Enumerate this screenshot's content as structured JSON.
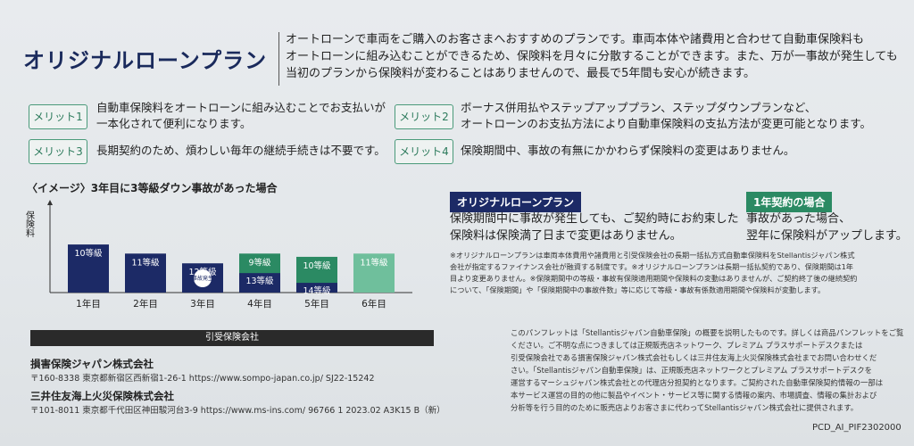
{
  "title": "オリジナルローンプラン",
  "intro": [
    "オートローンで車両をご購入のお客さまへおすすめのプランです。車両本体や諸費用と合わせて自動車保険料も",
    "オートローンに組み込むことができるため、保険料を月々に分散することができます。また、万が一事故が発生しても",
    "当初のプランから保険料が変わることはありませんので、最長で5年間も安心が続きます。"
  ],
  "merits": [
    {
      "label": "メリット1",
      "lines": [
        "自動車保険料をオートローンに組み込むことでお支払いが",
        "一本化されて便利になります。"
      ]
    },
    {
      "label": "メリット2",
      "lines": [
        "ボーナス併用払やステップアッププラン、ステップダウンプランなど、",
        "オートローンのお支払方法により自動車保険料の支払方法が変更可能となります。"
      ]
    },
    {
      "label": "メリット3",
      "lines": [
        "長期契約のため、煩わしい毎年の継続手続きは不要です。"
      ]
    },
    {
      "label": "メリット4",
      "lines": [
        "保険期間中、事故の有無にかかわらず保険料の変更はありません。"
      ]
    }
  ],
  "chart_title": "〈イメージ〉3年目に3等級ダウン事故があった場合",
  "chart_data": {
    "type": "bar",
    "ylabel": "保険料",
    "categories": [
      "1年目",
      "2年目",
      "3年目",
      "4年目",
      "5年目",
      "6年目"
    ],
    "series": [
      {
        "name": "オリジナルローンプラン",
        "labels": [
          "10等級",
          "11等級",
          "12等級",
          "13等級",
          "14等級",
          ""
        ],
        "values": [
          74,
          60,
          45,
          30,
          15,
          0
        ]
      },
      {
        "name": "1年契約の場合",
        "labels": [
          "",
          "",
          "",
          "9等級",
          "10等級",
          "11等級"
        ],
        "values": [
          0,
          0,
          0,
          60,
          55,
          60
        ]
      }
    ],
    "accident_label": "事故発生"
  },
  "plans": {
    "original": {
      "badge": "オリジナルローンプラン",
      "lines": [
        "保険期間中に事故が発生しても、ご契約時にお約束した",
        "保険料は保険満了日まで変更はありません。"
      ]
    },
    "annual": {
      "badge": "1年契約の場合",
      "lines": [
        "事故があった場合、",
        "翌年に保険料がアップします。"
      ]
    }
  },
  "notes": [
    "※オリジナルローンプランは車両本体費用や諸費用と引受保険会社の長期一括払方式自動車保険料をStellantisジャパン株式",
    "会社が指定するファイナンス会社が融資する制度です。※オリジナルローンプランは長期一括払契約であり、保険期間は1年",
    "目より変更ありません。※保険期間中の等級・事故有保険適用期間や保険料の変動はありませんが、ご契約終了後の継続契約",
    "について、「保険期間」や「保険期間中の事故件数」等に応じて等級・事故有係数適用期間や保険料が変動します。"
  ],
  "underwriters_heading": "引受保険会社",
  "companies": [
    {
      "name": "損害保険ジャパン株式会社",
      "address": "〒160-8338 東京都新宿区西新宿1-26-1  https://www.sompo-japan.co.jp/   SJ22-15242"
    },
    {
      "name": "三井住友海上火災保険株式会社",
      "address": "〒101-8011 東京都千代田区神田駿河台3-9  https://www.ms-ins.com/   96766 1 2023.02 A3K15 B（新）"
    }
  ],
  "right_notes": [
    "このパンフレットは「Stellantisジャパン自動車保険」の概要を説明したものです。詳しくは商品パンフレットをご覧",
    "ください。ご不明な点につきましては正規販売店ネットワーク、プレミアム プラスサポートデスクまたは",
    "引受保険会社である損害保険ジャパン株式会社もしくは三井住友海上火災保険株式会社までお問い合わせくだ",
    "さい。「Stellantisジャパン自動車保険」は、正規販売店ネットワークとプレミアム プラスサポートデスクを",
    "運営するマーシュジャパン株式会社との代理店分担契約となります。ご契約された自動車保険契約情報の一部は",
    "本サービス運営の目的の他に製品やイベント・サービス等に関する情報の案内、市場調査、情報の集計および",
    "分析等を行う目的のために販売店よりお客さまに代わってStellantisジャパン株式会社に提供されます。"
  ],
  "doc_code": "PCD_AI_PIF2302000",
  "colors": {
    "navy": "#1c2a66",
    "green": "#2b8a63",
    "light_green": "#6fbf9c"
  }
}
